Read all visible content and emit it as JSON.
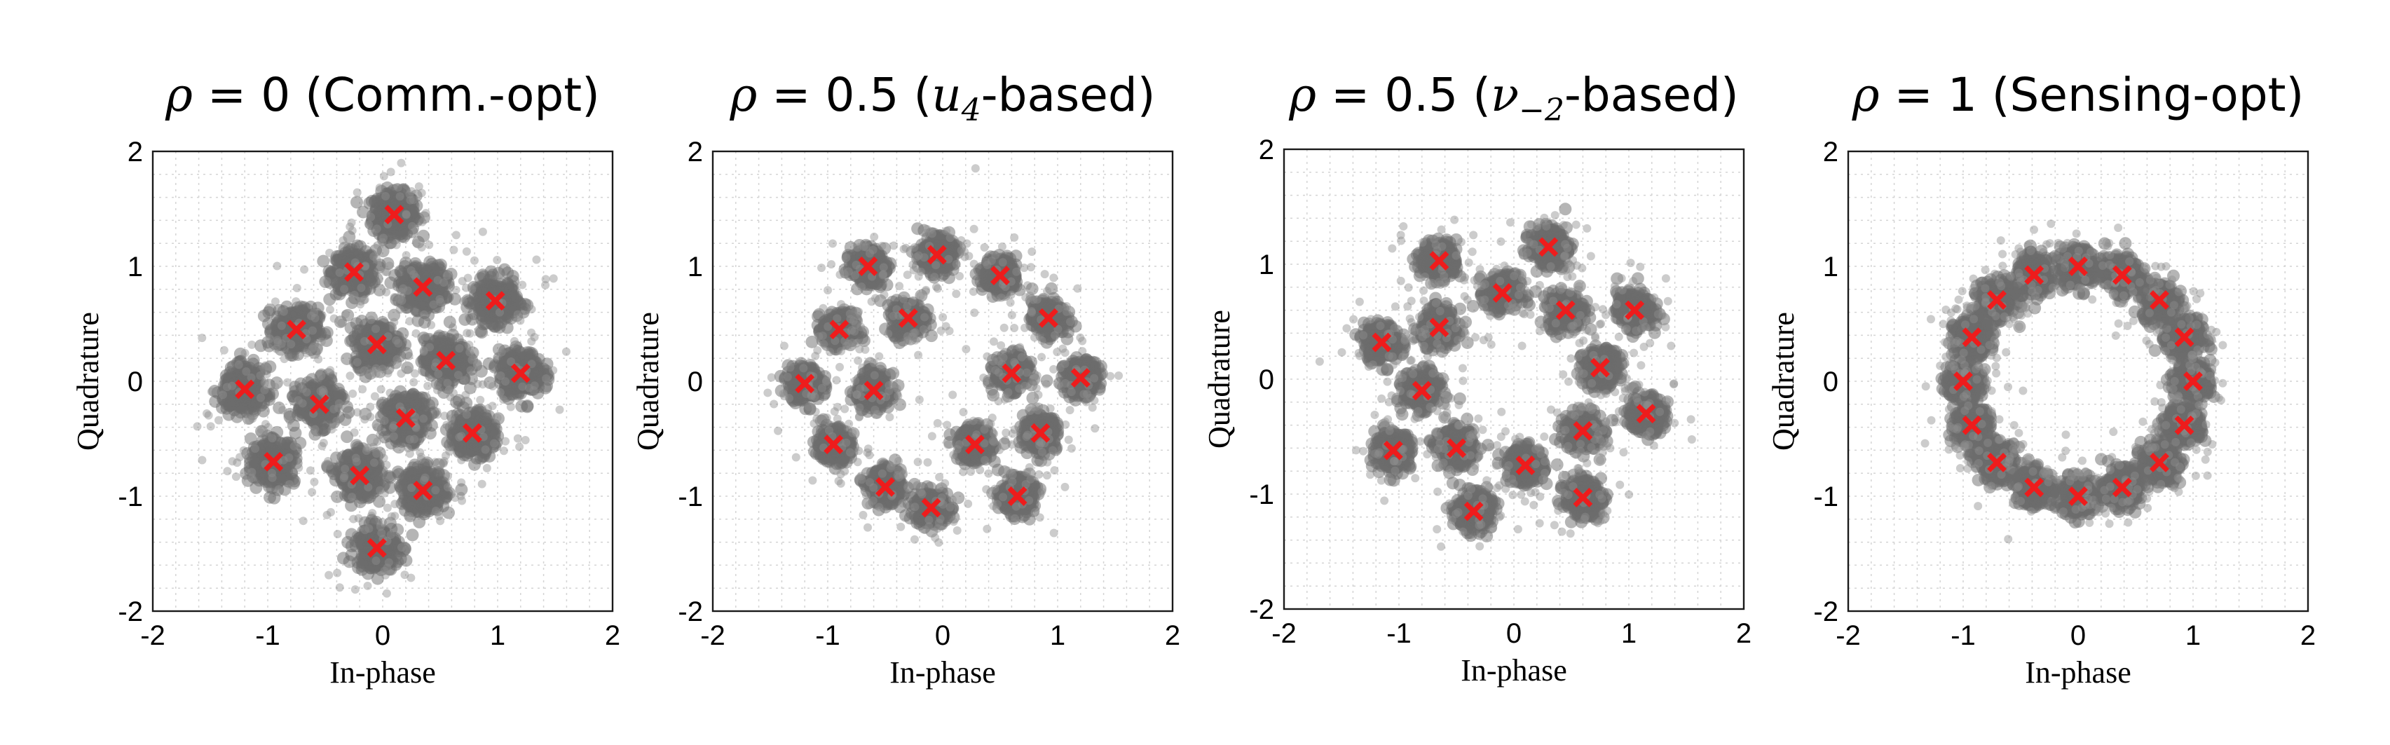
{
  "figure": {
    "grid": true,
    "colors": {
      "cloud": "#6b6b6b",
      "stray": "#8e8e8e",
      "marker": "#ee1c1c",
      "frame": "#1a1a1a",
      "grid": "#d4d4d4"
    }
  },
  "chart_data": [
    {
      "type": "scatter",
      "title_symbol": "ρ",
      "title_eq": " = ",
      "title_value": "0",
      "title_sub": "",
      "title_note": " (Comm.-opt)",
      "xlabel": "In-phase",
      "ylabel": "Quadrature",
      "xlim": [
        -2,
        2
      ],
      "ylim": [
        -2,
        2
      ],
      "xticks": [
        -2,
        -1,
        0,
        1,
        2
      ],
      "yticks": [
        -2,
        -1,
        0,
        1,
        2
      ],
      "cloud_spread": 0.17,
      "series": [
        {
          "name": "constellation",
          "x": [
            0.1,
            -0.25,
            0.35,
            0.98,
            -0.75,
            -0.05,
            0.55,
            1.2,
            -1.2,
            -0.55,
            0.2,
            0.78,
            -0.95,
            -0.2,
            0.35,
            -0.05
          ],
          "y": [
            1.45,
            0.95,
            0.82,
            0.7,
            0.45,
            0.32,
            0.18,
            0.07,
            -0.07,
            -0.2,
            -0.32,
            -0.45,
            -0.7,
            -0.82,
            -0.95,
            -1.45
          ]
        }
      ]
    },
    {
      "type": "scatter",
      "title_symbol": "ρ",
      "title_eq": " = ",
      "title_value": "0.5",
      "title_sub": "u",
      "title_sub_index": "4",
      "title_note": "-based)",
      "xlabel": "In-phase",
      "ylabel": "Quadrature",
      "xlim": [
        -2,
        2
      ],
      "ylim": [
        -2,
        2
      ],
      "xticks": [
        -2,
        -1,
        0,
        1,
        2
      ],
      "yticks": [
        -2,
        -1,
        0,
        1,
        2
      ],
      "cloud_spread": 0.13,
      "series": [
        {
          "name": "constellation",
          "x": [
            -0.05,
            -0.65,
            0.5,
            -0.9,
            -0.3,
            0.92,
            -1.2,
            -0.6,
            0.6,
            1.2,
            -0.95,
            0.85,
            -0.5,
            0.28,
            -0.1,
            0.65
          ],
          "y": [
            1.1,
            1.0,
            0.92,
            0.45,
            0.55,
            0.55,
            -0.02,
            -0.08,
            0.07,
            0.03,
            -0.55,
            -0.45,
            -0.92,
            -0.55,
            -1.1,
            -1.0
          ]
        }
      ]
    },
    {
      "type": "scatter",
      "title_symbol": "ρ",
      "title_eq": " = ",
      "title_value": "0.5",
      "title_sub": "ν",
      "title_sub_index": "−2",
      "title_note": "-based)",
      "xlabel": "In-phase",
      "ylabel": "Quadrature",
      "xlim": [
        -2,
        2
      ],
      "ylim": [
        -2,
        2
      ],
      "xticks": [
        -2,
        -1,
        0,
        1,
        2
      ],
      "yticks": [
        -2,
        -1,
        0,
        1,
        2
      ],
      "cloud_spread": 0.14,
      "series": [
        {
          "name": "constellation",
          "x": [
            0.3,
            -0.65,
            -0.1,
            0.45,
            1.05,
            -1.15,
            -0.65,
            -0.8,
            0.75,
            1.15,
            -1.05,
            -0.5,
            0.1,
            0.6,
            -0.35,
            0.6
          ],
          "y": [
            1.15,
            1.03,
            0.75,
            0.6,
            0.6,
            0.32,
            0.45,
            -0.1,
            0.1,
            -0.3,
            -0.62,
            -0.6,
            -0.75,
            -0.45,
            -1.15,
            -1.03
          ]
        }
      ]
    },
    {
      "type": "scatter",
      "title_symbol": "ρ",
      "title_eq": " = ",
      "title_value": "1",
      "title_sub": "",
      "title_note": " (Sensing-opt)",
      "xlabel": "In-phase",
      "ylabel": "Quadrature",
      "xlim": [
        -2,
        2
      ],
      "ylim": [
        -2,
        2
      ],
      "xticks": [
        -2,
        -1,
        0,
        1,
        2
      ],
      "yticks": [
        -2,
        -1,
        0,
        1,
        2
      ],
      "cloud_spread": 0.14,
      "series": [
        {
          "name": "constellation",
          "x": [
            1.0,
            0.924,
            0.707,
            0.383,
            0.0,
            -0.383,
            -0.707,
            -0.924,
            -1.0,
            -0.924,
            -0.707,
            -0.383,
            0.0,
            0.383,
            0.707,
            0.924
          ],
          "y": [
            0.0,
            0.383,
            0.707,
            0.924,
            1.0,
            0.924,
            0.707,
            0.383,
            0.0,
            -0.383,
            -0.707,
            -0.924,
            -1.0,
            -0.924,
            -0.707,
            -0.383
          ]
        }
      ]
    }
  ]
}
